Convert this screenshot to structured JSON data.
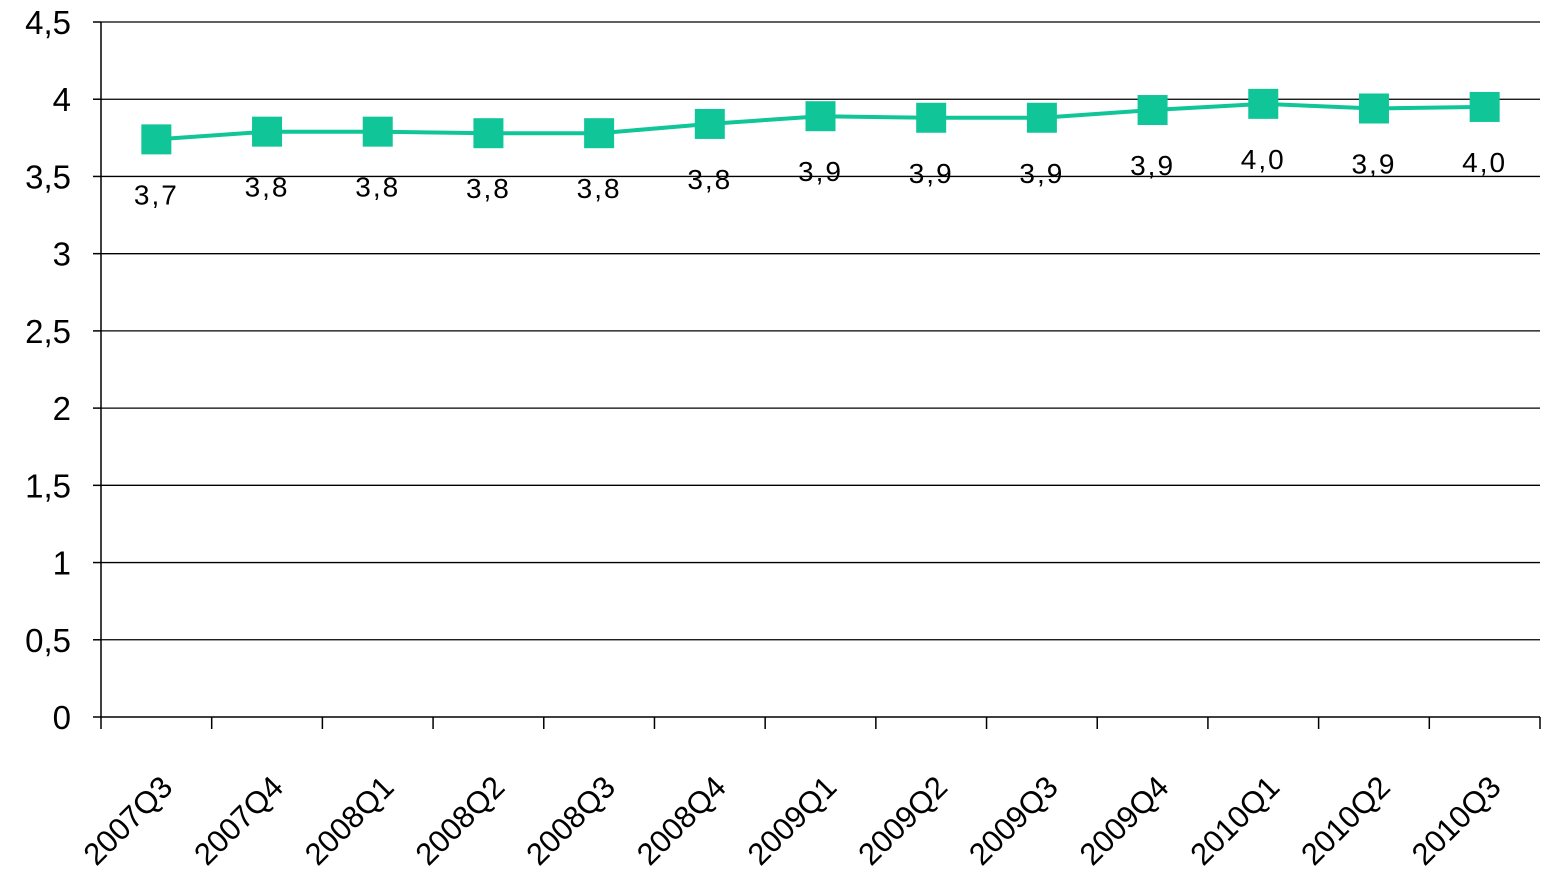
{
  "chart_data": {
    "type": "line",
    "title": "",
    "xlabel": "",
    "ylabel": "",
    "categories": [
      "2007Q3",
      "2007Q4",
      "2008Q1",
      "2008Q2",
      "2008Q3",
      "2008Q4",
      "2009Q1",
      "2009Q2",
      "2009Q3",
      "2009Q4",
      "2010Q1",
      "2010Q2",
      "2010Q3"
    ],
    "series": [
      {
        "values": [
          3.74,
          3.79,
          3.79,
          3.78,
          3.78,
          3.84,
          3.89,
          3.88,
          3.88,
          3.93,
          3.97,
          3.94,
          3.95
        ],
        "data_labels": [
          "3,7",
          "3,8",
          "3,8",
          "3,8",
          "3,8",
          "3,8",
          "3,9",
          "3,9",
          "3,9",
          "3,9",
          "4,0",
          "3,9",
          "4,0"
        ],
        "color": "#10C597",
        "marker": "square"
      }
    ],
    "ylim": [
      0,
      4.5
    ],
    "yticks": [
      0,
      0.5,
      1,
      1.5,
      2,
      2.5,
      3,
      3.5,
      4,
      4.5
    ],
    "ytick_labels": [
      "0",
      "0,5",
      "1",
      "1,5",
      "2",
      "2,5",
      "3",
      "3,5",
      "4",
      "4,5"
    ],
    "grid": true,
    "legend": "none"
  }
}
